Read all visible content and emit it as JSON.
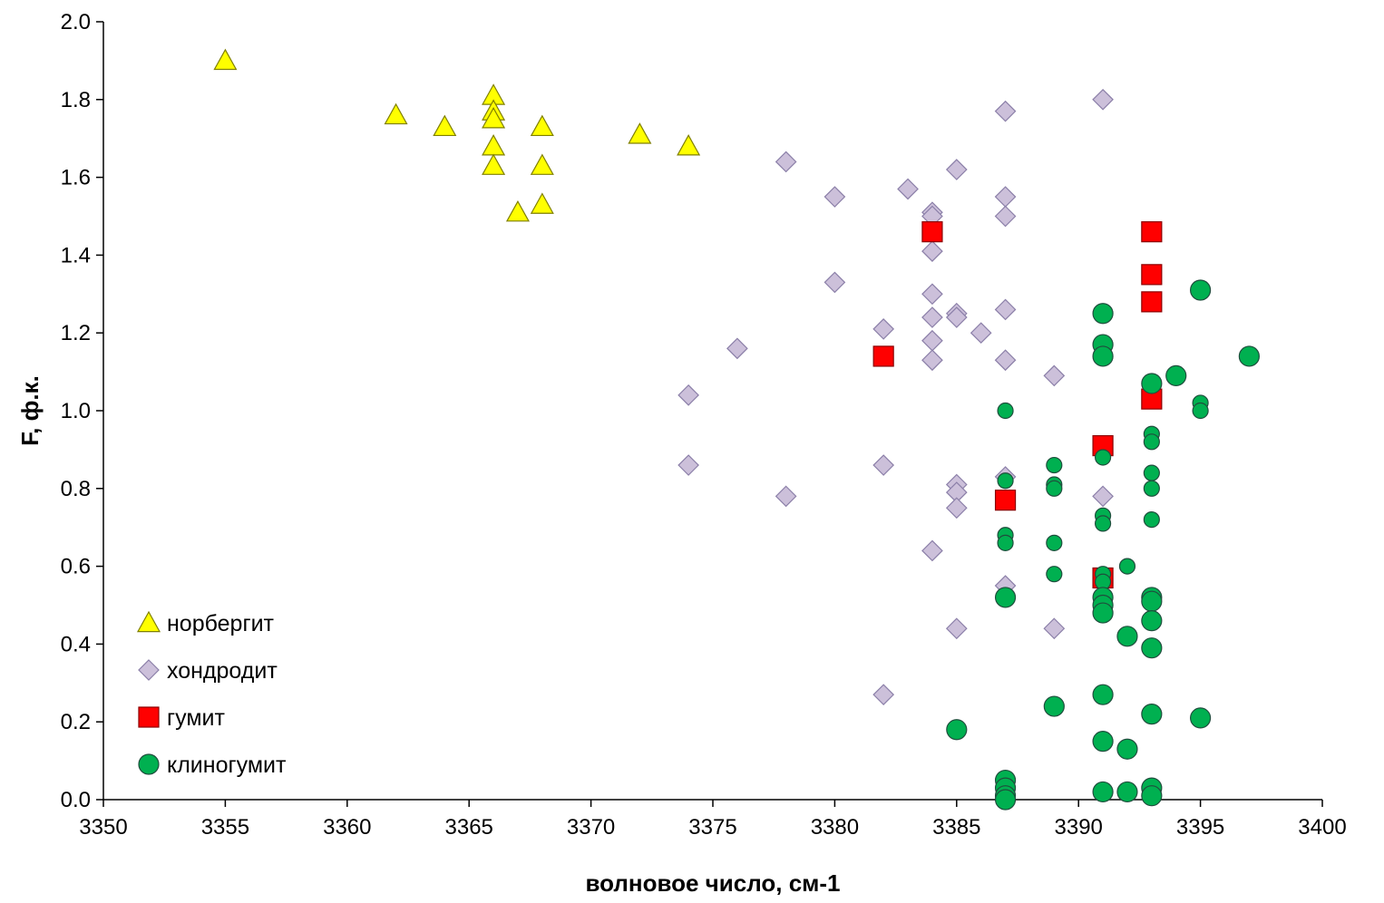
{
  "chart_data": {
    "type": "scatter",
    "title": "",
    "xlabel": "волновое число, см-1",
    "ylabel": "F, ф.к.",
    "xlim": [
      3350,
      3400
    ],
    "ylim": [
      0,
      2
    ],
    "xticks": [
      3350,
      3355,
      3360,
      3365,
      3370,
      3375,
      3380,
      3385,
      3390,
      3395,
      3400
    ],
    "yticks": [
      "0.0",
      "0.2",
      "0.4",
      "0.6",
      "0.8",
      "1.0",
      "1.2",
      "1.4",
      "1.6",
      "1.8",
      "2.0"
    ],
    "grid": false,
    "legend_position": "bottom-left",
    "series": [
      {
        "name": "норбергит",
        "marker": "triangle",
        "color": "#ffff00",
        "stroke": "#7f7f00",
        "points": [
          [
            3355,
            1.9
          ],
          [
            3362,
            1.76
          ],
          [
            3364,
            1.73
          ],
          [
            3366,
            1.81
          ],
          [
            3366,
            1.77
          ],
          [
            3366,
            1.75
          ],
          [
            3366,
            1.68
          ],
          [
            3366,
            1.63
          ],
          [
            3367,
            1.51
          ],
          [
            3368,
            1.73
          ],
          [
            3368,
            1.63
          ],
          [
            3368,
            1.53
          ],
          [
            3372,
            1.71
          ],
          [
            3374,
            1.68
          ]
        ]
      },
      {
        "name": "хондродит",
        "marker": "diamond",
        "color": "#ccc0da",
        "stroke": "#8b7fa8",
        "points": [
          [
            3374,
            1.04
          ],
          [
            3374,
            0.86
          ],
          [
            3376,
            1.16
          ],
          [
            3378,
            1.64
          ],
          [
            3378,
            0.78
          ],
          [
            3380,
            1.55
          ],
          [
            3380,
            1.33
          ],
          [
            3382,
            1.21
          ],
          [
            3382,
            0.86
          ],
          [
            3382,
            0.27
          ],
          [
            3383,
            1.57
          ],
          [
            3384,
            1.51
          ],
          [
            3384,
            1.5
          ],
          [
            3384,
            1.41
          ],
          [
            3384,
            1.3
          ],
          [
            3384,
            1.24
          ],
          [
            3384,
            1.18
          ],
          [
            3384,
            1.13
          ],
          [
            3384,
            0.64
          ],
          [
            3385,
            1.62
          ],
          [
            3385,
            1.25
          ],
          [
            3385,
            1.24
          ],
          [
            3385,
            0.81
          ],
          [
            3385,
            0.79
          ],
          [
            3385,
            0.75
          ],
          [
            3385,
            0.44
          ],
          [
            3386,
            1.2
          ],
          [
            3387,
            1.77
          ],
          [
            3387,
            1.55
          ],
          [
            3387,
            1.5
          ],
          [
            3387,
            1.26
          ],
          [
            3387,
            1.13
          ],
          [
            3387,
            0.83
          ],
          [
            3387,
            0.55
          ],
          [
            3389,
            1.09
          ],
          [
            3389,
            0.44
          ],
          [
            3391,
            1.8
          ],
          [
            3391,
            0.78
          ]
        ]
      },
      {
        "name": "гумит",
        "marker": "square",
        "color": "#ff0000",
        "stroke": "#8b0000",
        "points": [
          [
            3382,
            1.14
          ],
          [
            3384,
            1.46
          ],
          [
            3387,
            0.77
          ],
          [
            3391,
            0.91
          ],
          [
            3391,
            0.57
          ],
          [
            3393,
            1.46
          ],
          [
            3393,
            1.35
          ],
          [
            3393,
            1.28
          ],
          [
            3393,
            1.03
          ]
        ]
      },
      {
        "name": "клиногумит",
        "marker": "circle",
        "color": "#00b050",
        "stroke": "#1f4e3d",
        "points": [
          [
            3385,
            0.18,
            1
          ],
          [
            3387,
            1.0,
            0
          ],
          [
            3387,
            0.82,
            0
          ],
          [
            3387,
            0.68,
            0
          ],
          [
            3387,
            0.66,
            0
          ],
          [
            3387,
            0.52,
            1
          ],
          [
            3387,
            0.05,
            1
          ],
          [
            3387,
            0.03,
            1
          ],
          [
            3387,
            0.01,
            1
          ],
          [
            3387,
            0.0,
            1
          ],
          [
            3389,
            0.86,
            0
          ],
          [
            3389,
            0.81,
            0
          ],
          [
            3389,
            0.8,
            0
          ],
          [
            3389,
            0.66,
            0
          ],
          [
            3389,
            0.58,
            0
          ],
          [
            3389,
            0.24,
            1
          ],
          [
            3391,
            1.25,
            1
          ],
          [
            3391,
            1.17,
            1
          ],
          [
            3391,
            1.14,
            1
          ],
          [
            3391,
            0.88,
            0
          ],
          [
            3391,
            0.73,
            0
          ],
          [
            3391,
            0.71,
            0
          ],
          [
            3391,
            0.58,
            0
          ],
          [
            3391,
            0.56,
            0
          ],
          [
            3391,
            0.52,
            1
          ],
          [
            3391,
            0.5,
            1
          ],
          [
            3391,
            0.48,
            1
          ],
          [
            3391,
            0.27,
            1
          ],
          [
            3391,
            0.15,
            1
          ],
          [
            3391,
            0.02,
            1
          ],
          [
            3392,
            0.6,
            0
          ],
          [
            3392,
            0.42,
            1
          ],
          [
            3392,
            0.13,
            1
          ],
          [
            3392,
            0.02,
            1
          ],
          [
            3393,
            1.07,
            1
          ],
          [
            3393,
            0.94,
            0
          ],
          [
            3393,
            0.92,
            0
          ],
          [
            3393,
            0.84,
            0
          ],
          [
            3393,
            0.8,
            0
          ],
          [
            3393,
            0.72,
            0
          ],
          [
            3393,
            0.52,
            1
          ],
          [
            3393,
            0.51,
            1
          ],
          [
            3393,
            0.46,
            1
          ],
          [
            3393,
            0.39,
            1
          ],
          [
            3393,
            0.22,
            1
          ],
          [
            3393,
            0.03,
            1
          ],
          [
            3393,
            0.01,
            1
          ],
          [
            3394,
            1.09,
            1
          ],
          [
            3395,
            1.31,
            1
          ],
          [
            3395,
            1.02,
            0
          ],
          [
            3395,
            1.0,
            0
          ],
          [
            3395,
            0.21,
            1
          ],
          [
            3397,
            1.14,
            1
          ]
        ]
      }
    ]
  }
}
